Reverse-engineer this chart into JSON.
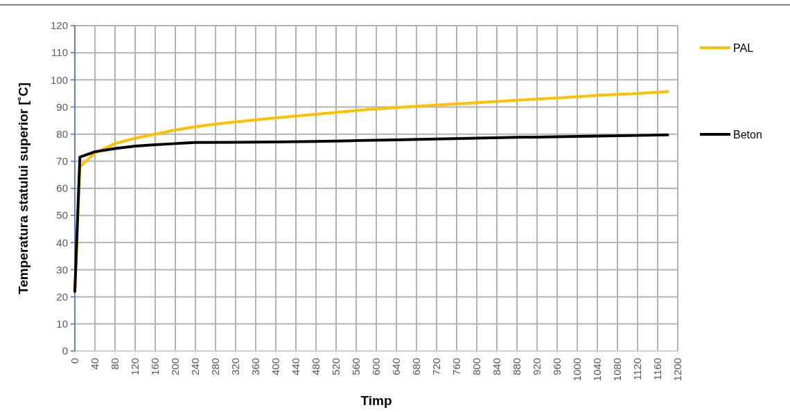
{
  "chart_data": {
    "type": "line",
    "xlabel": "Timp",
    "ylabel": "Temperatura statului superior [˚C]",
    "xlim": [
      0,
      1200
    ],
    "xticks": [
      0,
      40,
      80,
      120,
      160,
      200,
      240,
      280,
      320,
      360,
      400,
      440,
      480,
      520,
      560,
      600,
      640,
      680,
      720,
      760,
      800,
      840,
      880,
      920,
      960,
      1000,
      1040,
      1080,
      1120,
      1160,
      1200
    ],
    "ylim": [
      0,
      120
    ],
    "yticks": [
      0,
      10,
      20,
      30,
      40,
      50,
      60,
      70,
      80,
      90,
      100,
      110,
      120
    ],
    "grid": true,
    "legend": "right",
    "marker": "none",
    "line_style": "solid",
    "series": [
      {
        "name": "PAL",
        "color": "#ffc000",
        "x": [
          0,
          10,
          40,
          80,
          120,
          160,
          200,
          240,
          280,
          320,
          400,
          480,
          560,
          640,
          720,
          800,
          880,
          960,
          1040,
          1120,
          1180
        ],
        "values": [
          22,
          68,
          73,
          76.5,
          78.5,
          80,
          81.5,
          82.7,
          83.7,
          84.5,
          86,
          87.3,
          88.7,
          89.8,
          90.7,
          91.6,
          92.5,
          93.3,
          94.3,
          95,
          95.7
        ]
      },
      {
        "name": "Beton",
        "color": "#000000",
        "x": [
          0,
          10,
          40,
          80,
          120,
          160,
          200,
          240,
          320,
          400,
          480,
          560,
          640,
          720,
          800,
          880,
          960,
          1040,
          1120,
          1180
        ],
        "values": [
          22,
          71.5,
          73.5,
          74.7,
          75.6,
          76.1,
          76.5,
          76.9,
          77,
          77.1,
          77.3,
          77.6,
          77.9,
          78.2,
          78.5,
          78.8,
          79,
          79.3,
          79.5,
          79.7
        ]
      }
    ]
  }
}
